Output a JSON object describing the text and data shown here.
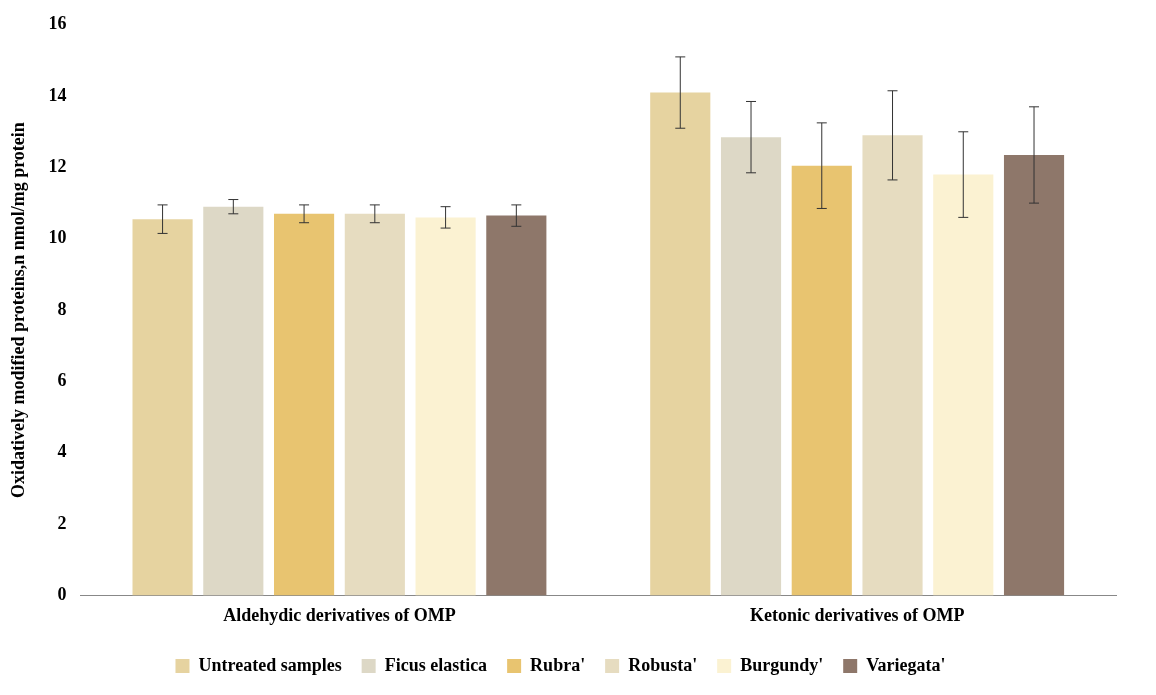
{
  "chart_data": {
    "type": "bar",
    "ylabel": "Oxidatively modified proteins,n nmol/mg protein",
    "categories": [
      "Aldehydic derivatives of OMP",
      "Ketonic derivatives of OMP"
    ],
    "series": [
      {
        "name": "Untreated samples",
        "color": "#e6d3a0",
        "values": [
          10.55,
          14.1
        ],
        "errors": [
          0.4,
          1.0
        ]
      },
      {
        "name": "Ficus elastica",
        "color": "#ddd8c6",
        "values": [
          10.9,
          12.85
        ],
        "errors": [
          0.2,
          1.0
        ]
      },
      {
        "name": "Rubra'",
        "color": "#e8c470",
        "values": [
          10.7,
          12.05
        ],
        "errors": [
          0.25,
          1.2
        ]
      },
      {
        "name": "Robusta'",
        "color": "#e6dcc0",
        "values": [
          10.7,
          12.9
        ],
        "errors": [
          0.25,
          1.25
        ]
      },
      {
        "name": "Burgundy'",
        "color": "#fbf2d2",
        "values": [
          10.6,
          11.8
        ],
        "errors": [
          0.3,
          1.2
        ]
      },
      {
        "name": "Variegata'",
        "color": "#8e776a",
        "values": [
          10.65,
          12.35
        ],
        "errors": [
          0.3,
          1.35
        ]
      }
    ],
    "ylim": [
      0,
      16
    ],
    "yticks": [
      0,
      2,
      4,
      6,
      8,
      10,
      12,
      14,
      16
    ],
    "grid": false,
    "legend": "bottom"
  }
}
